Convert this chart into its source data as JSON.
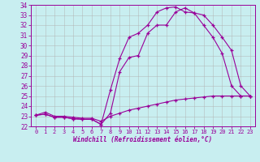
{
  "title": "",
  "xlabel": "Windchill (Refroidissement éolien,°C)",
  "ylabel": "",
  "bg_color": "#c8eef0",
  "line_color": "#990099",
  "grid_color": "#b0b0b0",
  "xlim": [
    -0.5,
    23.5
  ],
  "ylim": [
    22.0,
    34.0
  ],
  "xticks": [
    0,
    1,
    2,
    3,
    4,
    5,
    6,
    7,
    8,
    9,
    10,
    11,
    12,
    13,
    14,
    15,
    16,
    17,
    18,
    19,
    20,
    21,
    22,
    23
  ],
  "yticks": [
    22,
    23,
    24,
    25,
    26,
    27,
    28,
    29,
    30,
    31,
    32,
    33,
    34
  ],
  "line1_x": [
    0,
    1,
    2,
    3,
    4,
    5,
    6,
    7,
    8,
    9,
    10,
    11,
    12,
    13,
    14,
    15,
    16,
    17,
    18,
    19,
    20,
    21,
    22,
    23
  ],
  "line1_y": [
    23.1,
    23.2,
    22.9,
    22.9,
    22.75,
    22.7,
    22.7,
    22.2,
    25.6,
    28.7,
    30.8,
    31.2,
    32.0,
    33.3,
    33.7,
    33.8,
    33.3,
    33.2,
    32.0,
    30.8,
    29.2,
    26.0,
    25.0,
    25.0
  ],
  "line2_x": [
    0,
    1,
    2,
    3,
    4,
    5,
    6,
    7,
    8,
    9,
    10,
    11,
    12,
    13,
    14,
    15,
    16,
    17,
    18,
    19,
    20,
    21,
    22,
    23
  ],
  "line2_y": [
    23.1,
    23.2,
    22.9,
    22.9,
    22.75,
    22.7,
    22.7,
    22.2,
    23.3,
    27.4,
    28.8,
    29.0,
    31.2,
    32.0,
    32.0,
    33.3,
    33.7,
    33.2,
    33.0,
    32.0,
    30.8,
    29.5,
    26.0,
    25.0
  ],
  "line3_x": [
    0,
    1,
    2,
    3,
    4,
    5,
    6,
    7,
    8,
    9,
    10,
    11,
    12,
    13,
    14,
    15,
    16,
    17,
    18,
    19,
    20,
    21,
    22,
    23
  ],
  "line3_y": [
    23.1,
    23.4,
    23.0,
    23.0,
    22.9,
    22.8,
    22.8,
    22.5,
    23.0,
    23.3,
    23.6,
    23.8,
    24.0,
    24.2,
    24.4,
    24.6,
    24.7,
    24.8,
    24.9,
    25.0,
    25.0,
    25.0,
    25.0,
    25.0
  ]
}
